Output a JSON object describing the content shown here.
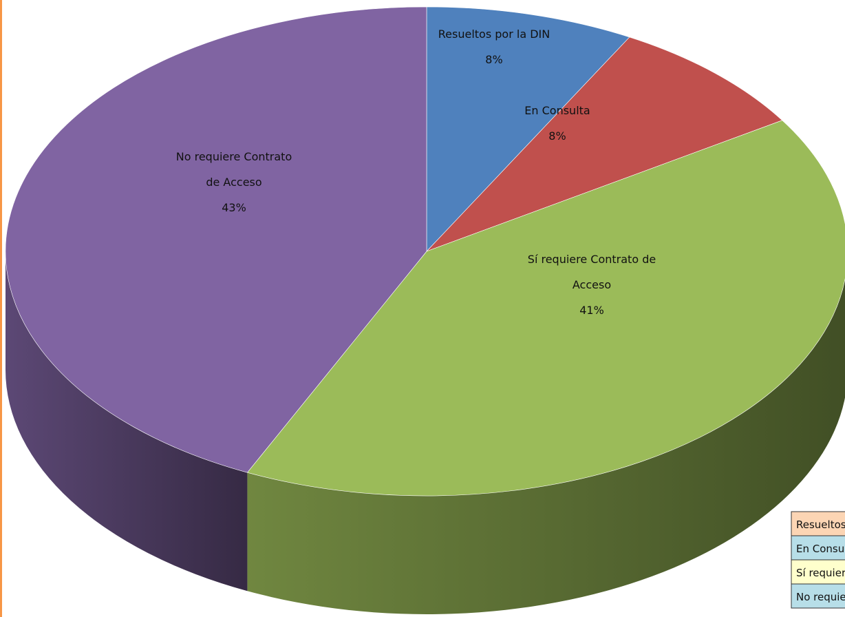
{
  "chart_data": {
    "type": "pie3d",
    "categories": [
      "Resueltos por la DIN",
      "En Consulta",
      "Sí requiere Contrato de Acceso",
      "No requiere Contrato de Acceso"
    ],
    "values": [
      8,
      8,
      41,
      43
    ],
    "value_labels": [
      "8%",
      "8%",
      "41%",
      "43%"
    ],
    "colors": [
      "#4f81bd",
      "#c0504d",
      "#9bbb59",
      "#8064a2"
    ],
    "legend": "bottom-right"
  }
}
